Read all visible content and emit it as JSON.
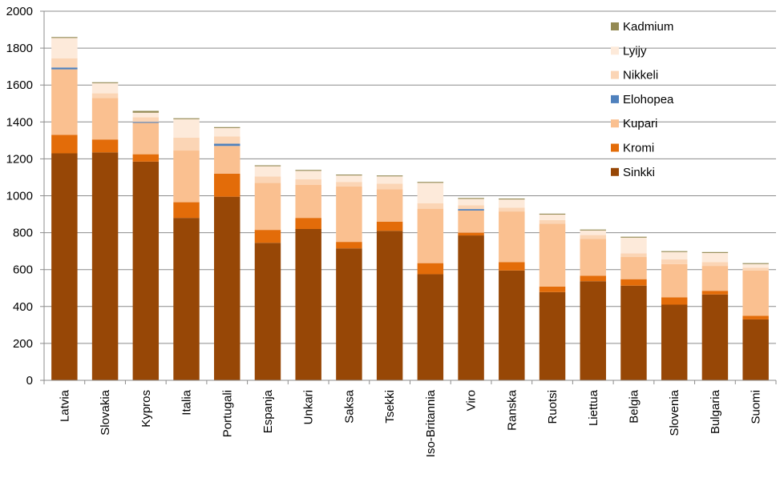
{
  "chart_data": {
    "type": "bar",
    "stacked": true,
    "categories": [
      "Latvia",
      "Slovakia",
      "Kypros",
      "Italia",
      "Portugali",
      "Espanja",
      "Unkari",
      "Saksa",
      "Tsekki",
      "Iso-Britannia",
      "Viro",
      "Ranska",
      "Ruotsi",
      "Liettua",
      "Belgia",
      "Slovenia",
      "Bulgaria",
      "Suomi"
    ],
    "series": [
      {
        "name": "Sinkki",
        "color": "#974706",
        "values": [
          1230,
          1235,
          1185,
          880,
          995,
          745,
          820,
          715,
          810,
          575,
          785,
          595,
          478,
          537,
          513,
          410,
          465,
          330
        ]
      },
      {
        "name": "Kromi",
        "color": "#E36C09",
        "values": [
          100,
          70,
          40,
          85,
          125,
          70,
          60,
          35,
          50,
          60,
          15,
          45,
          30,
          30,
          35,
          40,
          20,
          20
        ]
      },
      {
        "name": "Kupari",
        "color": "#FAC090",
        "values": [
          355,
          225,
          170,
          280,
          150,
          255,
          180,
          300,
          175,
          295,
          120,
          275,
          340,
          200,
          120,
          180,
          135,
          245
        ]
      },
      {
        "name": "Elohopea",
        "color": "#4F81BD",
        "values": [
          10,
          0,
          5,
          0,
          12,
          0,
          0,
          0,
          0,
          0,
          8,
          0,
          0,
          0,
          0,
          0,
          0,
          0
        ]
      },
      {
        "name": "Nikkeli",
        "color": "#FBD5B5",
        "values": [
          50,
          25,
          25,
          70,
          40,
          35,
          30,
          25,
          30,
          30,
          20,
          20,
          20,
          20,
          20,
          25,
          20,
          15
        ]
      },
      {
        "name": "Lyijy",
        "color": "#FDEADA",
        "values": [
          110,
          55,
          25,
          100,
          45,
          55,
          45,
          35,
          40,
          110,
          35,
          45,
          30,
          25,
          85,
          40,
          50,
          20
        ]
      },
      {
        "name": "Kadmium",
        "color": "#948A54",
        "values": [
          5,
          5,
          10,
          5,
          5,
          5,
          5,
          5,
          5,
          5,
          5,
          5,
          5,
          5,
          5,
          5,
          5,
          5
        ]
      }
    ],
    "legend_order": [
      "Kadmium",
      "Lyijy",
      "Nikkeli",
      "Elohopea",
      "Kupari",
      "Kromi",
      "Sinkki"
    ],
    "ylim": [
      0,
      2000
    ],
    "yticks": [
      "0",
      "200",
      "400",
      "600",
      "800",
      "1000",
      "1200",
      "1400",
      "1600",
      "1800",
      "2000"
    ],
    "grid": true,
    "legend_position": "top-right",
    "title": "",
    "xlabel": "",
    "ylabel": ""
  }
}
